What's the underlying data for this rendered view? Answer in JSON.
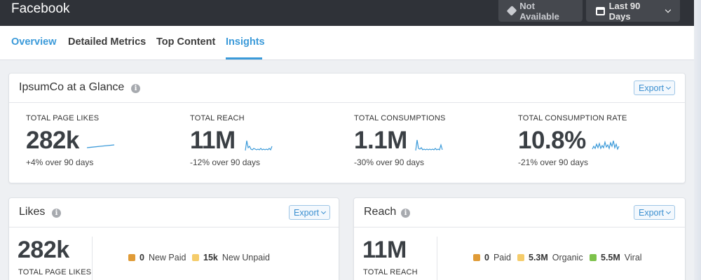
{
  "app": {
    "title": "Facebook"
  },
  "topbar": {
    "not_available_label": "Not Available",
    "date_range_label": "Last 90 Days"
  },
  "tabs": [
    {
      "label": "Overview",
      "active": false
    },
    {
      "label": "Detailed Metrics",
      "active": false
    },
    {
      "label": "Top Content",
      "active": false
    },
    {
      "label": "Insights",
      "active": true
    }
  ],
  "glance": {
    "title": "IpsumCo at a Glance",
    "info_icon": "i",
    "export_label": "Export",
    "metrics": [
      {
        "label": "TOTAL PAGE LIKES",
        "value": "282k",
        "change": "+4% over 90 days"
      },
      {
        "label": "TOTAL REACH",
        "value": "11M",
        "change": "-12% over 90 days"
      },
      {
        "label": "TOTAL CONSUMPTIONS",
        "value": "1.1M",
        "change": "-30% over 90 days"
      },
      {
        "label": "TOTAL CONSUMPTION RATE",
        "value": "10.8%",
        "change": "-21% over 90 days"
      }
    ]
  },
  "likes": {
    "title": "Likes",
    "info_icon": "i",
    "export_label": "Export",
    "value": "282k",
    "label": "TOTAL PAGE LIKES",
    "legend": [
      {
        "value": "0",
        "label": "New Paid",
        "color": "#e09b37"
      },
      {
        "value": "15k",
        "label": "New Unpaid",
        "color": "#f5cc6a"
      }
    ]
  },
  "reach": {
    "title": "Reach",
    "info_icon": "i",
    "export_label": "Export",
    "value": "11M",
    "label": "TOTAL REACH",
    "legend": [
      {
        "value": "0",
        "label": "Paid",
        "color": "#e09b37"
      },
      {
        "value": "5.3M",
        "label": "Organic",
        "color": "#f5cc6a"
      },
      {
        "value": "5.5M",
        "label": "Viral",
        "color": "#7dc24b"
      }
    ]
  },
  "colors": {
    "accent": "#3b9ad9",
    "topbar": "#2f3238",
    "sparkline": "#3b9ad9"
  }
}
